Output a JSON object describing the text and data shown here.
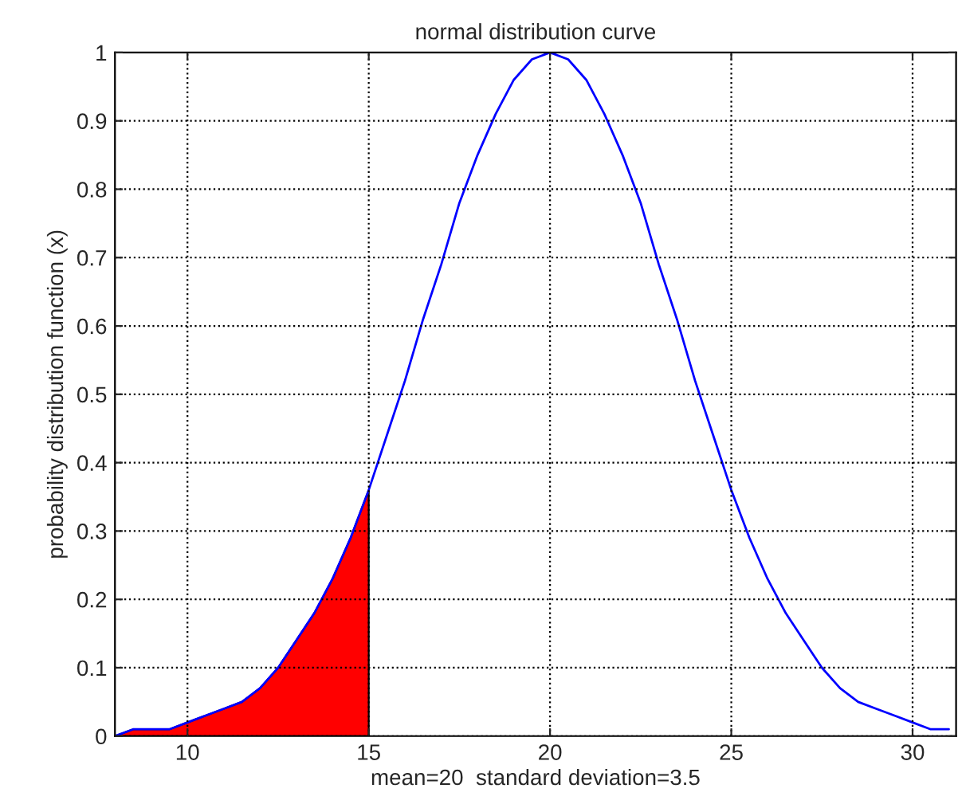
{
  "chart_data": {
    "type": "line",
    "title": "normal distribution curve",
    "xlabel": "mean=20  standard deviation=3.5",
    "ylabel": "probability distribution function (x)",
    "series": [
      {
        "type": "area",
        "color": "#ff0000",
        "x": [
          8,
          8.5,
          9,
          9.5,
          10,
          10.5,
          11,
          11.5,
          12,
          12.5,
          13,
          13.5,
          14,
          14.5,
          15
        ],
        "values": [
          0.0,
          0.01,
          0.01,
          0.01,
          0.02,
          0.03,
          0.04,
          0.05,
          0.07,
          0.1,
          0.14,
          0.18,
          0.23,
          0.29,
          0.36
        ]
      },
      {
        "color": "#0000ff",
        "x": [
          8,
          8.5,
          9,
          9.5,
          10,
          10.5,
          11,
          11.5,
          12,
          12.5,
          13,
          13.5,
          14,
          14.5,
          15,
          15.5,
          16,
          16.5,
          17,
          17.5,
          18,
          18.5,
          19,
          19.5,
          20,
          20.5,
          21,
          21.5,
          22,
          22.5,
          23,
          23.5,
          24,
          24.5,
          25,
          25.5,
          26,
          26.5,
          27,
          27.5,
          28,
          28.5,
          29,
          29.5,
          30,
          30.5,
          31
        ],
        "values": [
          0.0,
          0.01,
          0.01,
          0.01,
          0.02,
          0.03,
          0.04,
          0.05,
          0.07,
          0.1,
          0.14,
          0.18,
          0.23,
          0.29,
          0.36,
          0.44,
          0.52,
          0.61,
          0.69,
          0.78,
          0.85,
          0.91,
          0.96,
          0.99,
          1.0,
          0.99,
          0.96,
          0.91,
          0.85,
          0.78,
          0.69,
          0.61,
          0.52,
          0.44,
          0.36,
          0.29,
          0.23,
          0.18,
          0.14,
          0.1,
          0.07,
          0.05,
          0.04,
          0.03,
          0.02,
          0.01,
          0.01
        ]
      }
    ],
    "xlim": [
      8,
      31.2
    ],
    "xticks": [
      10,
      15,
      20,
      25,
      30
    ],
    "ylim": [
      0,
      1
    ],
    "yticks": [
      0,
      0.1,
      0.2,
      0.3,
      0.4,
      0.5,
      0.6,
      0.7,
      0.8,
      0.9,
      1
    ],
    "grid": true,
    "line_style": "solid"
  }
}
